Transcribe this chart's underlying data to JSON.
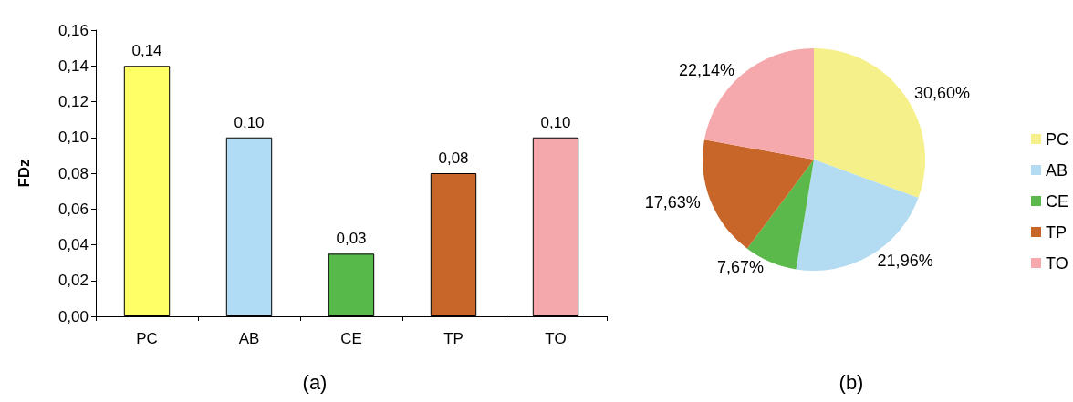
{
  "chart_data": [
    {
      "type": "bar",
      "title": "(a)",
      "ylabel": "FDz",
      "categories": [
        "PC",
        "AB",
        "CE",
        "TP",
        "TO"
      ],
      "values": [
        0.14,
        0.1,
        0.035,
        0.08,
        0.1
      ],
      "colors": [
        "#ffff66",
        "#b0dcf5",
        "#57b94a",
        "#c8662a",
        "#f5a8ab"
      ],
      "value_labels": [
        "0,14",
        "0,10",
        "0,03",
        "0,08",
        "0,10"
      ],
      "ylim": [
        0,
        0.16
      ],
      "yticks": [
        {
          "value": 0,
          "label": "0,00"
        },
        {
          "value": 0.02,
          "label": "0,02"
        },
        {
          "value": 0.04,
          "label": "0,04"
        },
        {
          "value": 0.06,
          "label": "0,06"
        },
        {
          "value": 0.08,
          "label": "0,08"
        },
        {
          "value": 0.1,
          "label": "0,10"
        },
        {
          "value": 0.12,
          "label": "0,12"
        },
        {
          "value": 0.14,
          "label": "0,14"
        },
        {
          "value": 0.16,
          "label": "0,16"
        }
      ],
      "grid": false,
      "legend": false
    },
    {
      "type": "pie",
      "title": "(b)",
      "categories": [
        "PC",
        "AB",
        "CE",
        "TP",
        "TO"
      ],
      "values": [
        30.6,
        21.96,
        7.67,
        17.63,
        22.14
      ],
      "colors": [
        "#f6f08a",
        "#b3dcf2",
        "#5ab94a",
        "#c8662a",
        "#f6a9ad"
      ],
      "value_labels": [
        "30,60%",
        "21,96%",
        "7,67%",
        "17,63%",
        "22,14%"
      ],
      "legend": "right"
    }
  ]
}
